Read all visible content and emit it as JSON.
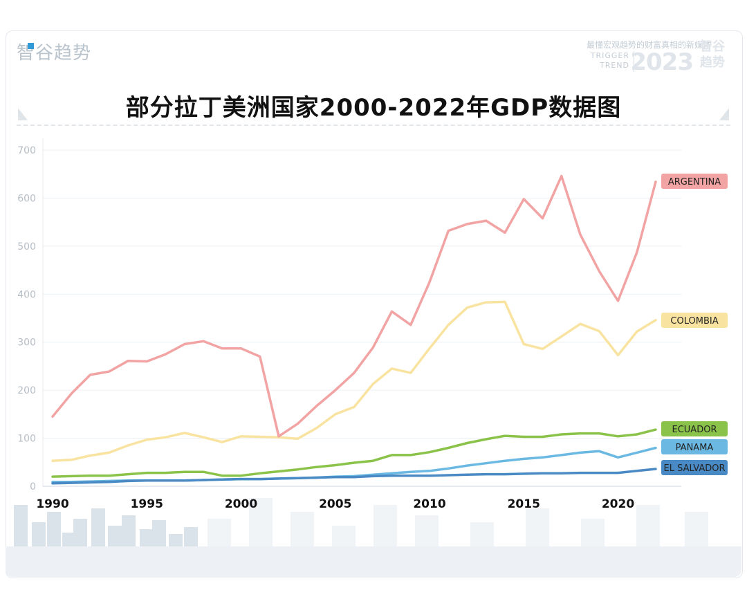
{
  "header": {
    "brand": "智谷趋势",
    "tagline": "最懂宏观趋势的财富真相的新媒体",
    "tag_en_1": "TRIGGER",
    "tag_en_2": "TREND",
    "year": "2023",
    "logo_1": "智谷",
    "logo_2": "趋势"
  },
  "colors": {
    "ARGENTINA": "#f2a3a3",
    "COLOMBIA": "#f9e3a0",
    "ECUADOR": "#8bc34a",
    "PANAMA": "#6bb9e3",
    "EL SALVADOR": "#4a8ac4"
  },
  "chart_data": {
    "type": "line",
    "title": "部分拉丁美洲国家2000-2022年GDP数据图",
    "xlabel": "",
    "ylabel": "",
    "xlim": [
      1990,
      2022
    ],
    "ylim": [
      0,
      700
    ],
    "y_ticks": [
      "0",
      "100",
      "200",
      "300",
      "400",
      "500",
      "600",
      "700"
    ],
    "x_ticks": [
      "1990",
      "1995",
      "2000",
      "2005",
      "2010",
      "2015",
      "2020"
    ],
    "x": [
      1990,
      1991,
      1992,
      1993,
      1994,
      1995,
      1996,
      1997,
      1998,
      1999,
      2000,
      2001,
      2002,
      2003,
      2004,
      2005,
      2006,
      2007,
      2008,
      2009,
      2010,
      2011,
      2012,
      2013,
      2014,
      2015,
      2016,
      2017,
      2018,
      2019,
      2020,
      2021,
      2022
    ],
    "series": [
      {
        "name": "ARGENTINA",
        "values": [
          145,
          193,
          232,
          239,
          261,
          260,
          275,
          296,
          302,
          287,
          287,
          270,
          104,
          130,
          167,
          200,
          236,
          289,
          364,
          336,
          425,
          532,
          546,
          553,
          528,
          598,
          558,
          646,
          524,
          448,
          386,
          487,
          634
        ]
      },
      {
        "name": "COLOMBIA",
        "values": [
          53,
          55,
          64,
          70,
          85,
          97,
          102,
          111,
          102,
          92,
          104,
          103,
          102,
          99,
          121,
          150,
          165,
          213,
          245,
          236,
          287,
          336,
          372,
          383,
          384,
          296,
          286,
          312,
          338,
          323,
          273,
          322,
          346
        ]
      },
      {
        "name": "ECUADOR",
        "values": [
          20,
          21,
          22,
          22,
          25,
          28,
          28,
          30,
          30,
          22,
          22,
          27,
          31,
          35,
          40,
          44,
          49,
          53,
          65,
          65,
          71,
          80,
          90,
          98,
          105,
          103,
          103,
          108,
          110,
          110,
          104,
          108,
          118
        ]
      },
      {
        "name": "PANAMA",
        "values": [
          9,
          9,
          10,
          11,
          12,
          12,
          12,
          12,
          13,
          14,
          15,
          15,
          16,
          17,
          18,
          20,
          21,
          24,
          27,
          30,
          32,
          37,
          43,
          48,
          53,
          57,
          60,
          65,
          70,
          73,
          60,
          70,
          80
        ]
      },
      {
        "name": "EL SALVADOR",
        "values": [
          6,
          7,
          8,
          9,
          11,
          12,
          12,
          12,
          13,
          14,
          15,
          15,
          16,
          17,
          18,
          19,
          19,
          21,
          22,
          22,
          22,
          23,
          24,
          25,
          25,
          26,
          27,
          27,
          28,
          28,
          28,
          32,
          36
        ]
      }
    ]
  }
}
